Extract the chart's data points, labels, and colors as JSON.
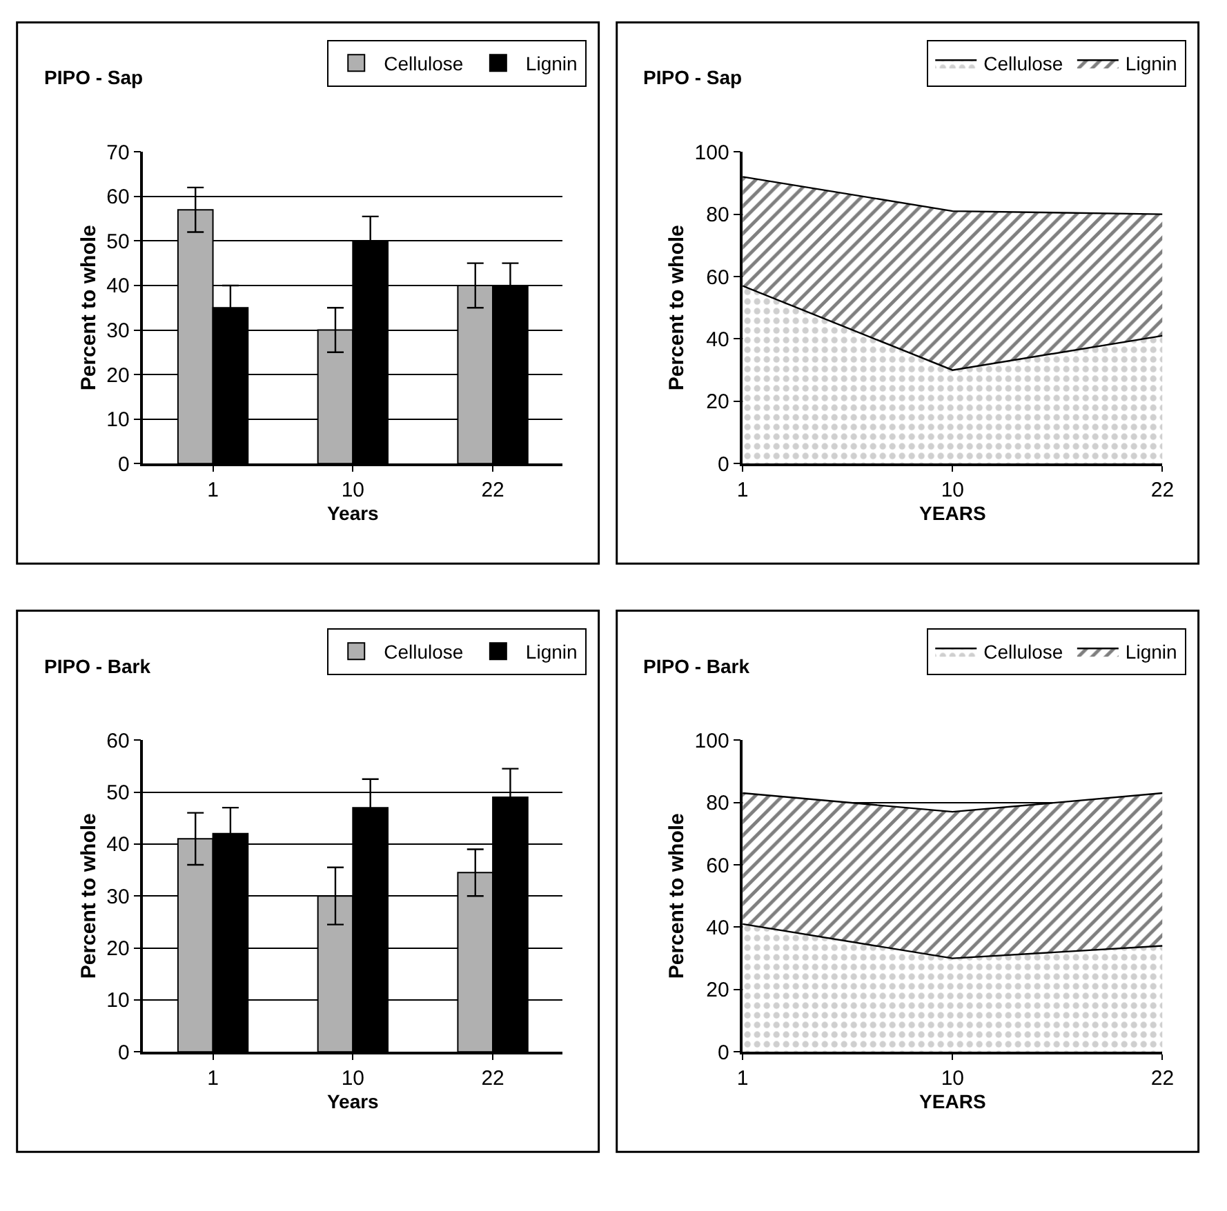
{
  "chart_data": [
    {
      "type": "bar",
      "title": "PIPO - Sap",
      "xlabel": "Years",
      "ylabel": "Percent to whole",
      "categories": [
        "1",
        "10",
        "22"
      ],
      "ylim": [
        0,
        70
      ],
      "yticks": [
        0,
        10,
        20,
        30,
        40,
        50,
        60,
        70
      ],
      "grid": "y",
      "legend": "top right",
      "series": [
        {
          "name": "Cellulose",
          "color": "#b0b0b0",
          "values": [
            57,
            30,
            40
          ],
          "errors": [
            5,
            5,
            5
          ]
        },
        {
          "name": "Lignin",
          "color": "#000000",
          "values": [
            35,
            50,
            40
          ],
          "errors": [
            5,
            5.5,
            5
          ]
        }
      ]
    },
    {
      "type": "area",
      "stacked": true,
      "title": "PIPO - Sap",
      "xlabel": "YEARS",
      "ylabel": "Percent to whole",
      "categories": [
        "1",
        "10",
        "22"
      ],
      "ylim": [
        0,
        100
      ],
      "yticks": [
        0,
        20,
        40,
        60,
        80,
        100
      ],
      "grid": "y",
      "legend": "top right",
      "series": [
        {
          "name": "Cellulose",
          "color": "#a0a0a0",
          "values": [
            57,
            30,
            41
          ]
        },
        {
          "name": "Lignin",
          "color": "#000000",
          "values": [
            35,
            51,
            39
          ]
        }
      ]
    },
    {
      "type": "bar",
      "title": "PIPO - Bark",
      "xlabel": "Years",
      "ylabel": "Percent to whole",
      "categories": [
        "1",
        "10",
        "22"
      ],
      "ylim": [
        0,
        60
      ],
      "yticks": [
        0,
        10,
        20,
        30,
        40,
        50,
        60
      ],
      "grid": "y",
      "legend": "top right",
      "series": [
        {
          "name": "Cellulose",
          "color": "#b0b0b0",
          "values": [
            41,
            30,
            34.5
          ],
          "errors": [
            5,
            5.5,
            4.5
          ]
        },
        {
          "name": "Lignin",
          "color": "#000000",
          "values": [
            42,
            47,
            49
          ],
          "errors": [
            5,
            5.5,
            5.5
          ]
        }
      ]
    },
    {
      "type": "area",
      "stacked": true,
      "title": "PIPO - Bark",
      "xlabel": "YEARS",
      "ylabel": "Percent to whole",
      "categories": [
        "1",
        "10",
        "22"
      ],
      "ylim": [
        0,
        100
      ],
      "yticks": [
        0,
        20,
        40,
        60,
        80,
        100
      ],
      "grid": "y",
      "legend": "top right",
      "series": [
        {
          "name": "Cellulose",
          "color": "#a0a0a0",
          "values": [
            41,
            30,
            34
          ]
        },
        {
          "name": "Lignin",
          "color": "#000000",
          "values": [
            42,
            47,
            49
          ]
        }
      ]
    }
  ]
}
